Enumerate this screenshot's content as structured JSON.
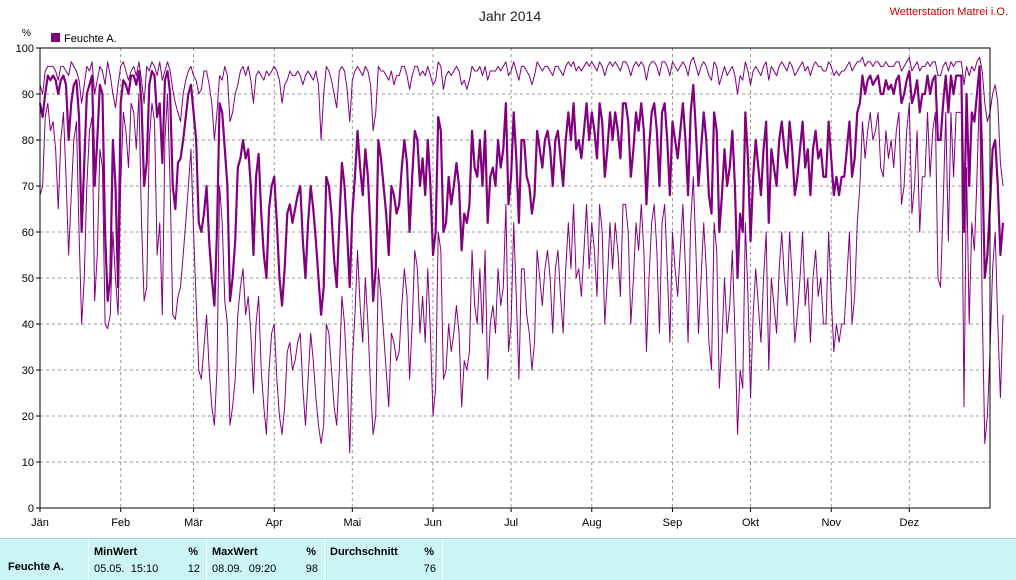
{
  "header": {
    "title": "Jahr 2014",
    "station": "Wetterstation Matrei i.O."
  },
  "colors": {
    "series": "#800080",
    "grid": "#999999",
    "stats_bg": "#ccf5f5"
  },
  "chart_data": {
    "type": "line",
    "unit_label": "%",
    "ylim": [
      0,
      100
    ],
    "y_ticks": [
      0,
      10,
      20,
      30,
      40,
      50,
      60,
      70,
      80,
      90,
      100
    ],
    "x_range": [
      0,
      365
    ],
    "x_ticks": [
      {
        "day": 0,
        "label": "Jän"
      },
      {
        "day": 31,
        "label": "Feb"
      },
      {
        "day": 59,
        "label": "Mär"
      },
      {
        "day": 90,
        "label": "Apr"
      },
      {
        "day": 120,
        "label": "Mai"
      },
      {
        "day": 151,
        "label": "Jun"
      },
      {
        "day": 181,
        "label": "Jul"
      },
      {
        "day": 212,
        "label": "Aug"
      },
      {
        "day": 243,
        "label": "Sep"
      },
      {
        "day": 273,
        "label": "Okt"
      },
      {
        "day": 304,
        "label": "Nov"
      },
      {
        "day": 334,
        "label": "Dez"
      }
    ],
    "grid": true,
    "legend_position": "top-left",
    "series_name": "Feuchte A.",
    "series": [
      {
        "key": "max",
        "values": [
          92,
          90,
          95,
          96,
          96,
          96,
          95,
          93,
          96,
          96,
          95,
          94,
          97,
          96,
          95,
          93,
          88,
          92,
          96,
          95,
          97,
          90,
          93,
          96,
          95,
          92,
          97,
          94,
          90,
          87,
          92,
          96,
          97,
          95,
          93,
          95,
          96,
          94,
          97,
          93,
          88,
          96,
          95,
          97,
          96,
          94,
          97,
          93,
          95,
          97,
          95,
          91,
          88,
          86,
          84,
          90,
          93,
          95,
          96,
          94,
          93,
          90,
          91,
          95,
          95,
          92,
          88,
          80,
          86,
          94,
          93,
          96,
          94,
          84,
          86,
          90,
          92,
          95,
          96,
          94,
          96,
          93,
          88,
          94,
          95,
          94,
          93,
          95,
          94,
          95,
          96,
          95,
          93,
          88,
          92,
          93,
          95,
          94,
          94,
          95,
          94,
          92,
          94,
          95,
          94,
          93,
          95,
          92,
          80,
          90,
          96,
          95,
          93,
          90,
          87,
          95,
          96,
          95,
          91,
          84,
          93,
          95,
          96,
          95,
          94,
          96,
          95,
          92,
          82,
          86,
          96,
          95,
          95,
          94,
          93,
          95,
          92,
          94,
          94,
          96,
          96,
          94,
          91,
          94,
          96,
          96,
          94,
          95,
          94,
          96,
          94,
          92,
          93,
          97,
          96,
          91,
          94,
          95,
          94,
          95,
          96,
          95,
          92,
          93,
          91,
          93,
          96,
          95,
          95,
          96,
          94,
          96,
          93,
          95,
          95,
          95,
          96,
          95,
          96,
          97,
          94,
          95,
          97,
          95,
          93,
          96,
          96,
          95,
          94,
          92,
          94,
          97,
          96,
          95,
          96,
          96,
          95,
          94,
          96,
          96,
          95,
          94,
          96,
          97,
          96,
          97,
          95,
          96,
          95,
          96,
          97,
          96,
          97,
          96,
          95,
          97,
          96,
          94,
          96,
          97,
          96,
          97,
          96,
          95,
          97,
          97,
          96,
          94,
          96,
          97,
          96,
          97,
          96,
          93,
          96,
          97,
          97,
          96,
          94,
          97,
          97,
          96,
          94,
          97,
          96,
          95,
          96,
          97,
          96,
          94,
          97,
          98,
          96,
          94,
          96,
          97,
          96,
          94,
          93,
          97,
          96,
          92,
          94,
          96,
          94,
          95,
          96,
          94,
          90,
          94,
          93,
          97,
          95,
          92,
          95,
          96,
          95,
          94,
          96,
          97,
          93,
          96,
          95,
          94,
          96,
          97,
          96,
          95,
          97,
          96,
          94,
          95,
          96,
          97,
          95,
          96,
          94,
          96,
          97,
          96,
          96,
          95,
          95,
          97,
          96,
          94,
          95,
          94,
          95,
          95,
          96,
          97,
          95,
          96,
          97,
          97,
          98,
          96,
          97,
          97,
          96,
          97,
          97,
          96,
          96,
          97,
          96,
          96,
          96,
          97,
          97,
          95,
          96,
          97,
          98,
          95,
          96,
          97,
          95,
          96,
          96,
          97,
          96,
          97,
          97,
          94,
          94,
          96,
          97,
          95,
          97,
          96,
          97,
          97,
          97,
          92,
          96,
          94,
          96,
          95,
          97,
          98,
          95,
          88,
          84,
          86,
          90,
          92,
          88,
          75,
          70
        ]
      },
      {
        "key": "mean",
        "values": [
          88,
          85,
          90,
          94,
          93,
          94,
          93,
          90,
          93,
          94,
          92,
          80,
          88,
          92,
          93,
          85,
          60,
          75,
          90,
          92,
          94,
          70,
          80,
          92,
          90,
          60,
          45,
          50,
          80,
          70,
          48,
          88,
          93,
          92,
          90,
          94,
          94,
          92,
          95,
          88,
          70,
          75,
          92,
          95,
          94,
          85,
          88,
          75,
          93,
          95,
          90,
          70,
          65,
          75,
          76,
          80,
          85,
          90,
          92,
          86,
          80,
          62,
          60,
          64,
          70,
          58,
          50,
          44,
          60,
          88,
          86,
          78,
          70,
          45,
          50,
          58,
          74,
          76,
          80,
          76,
          78,
          70,
          55,
          72,
          77,
          64,
          55,
          50,
          65,
          70,
          72,
          62,
          50,
          44,
          52,
          64,
          66,
          62,
          65,
          68,
          70,
          58,
          50,
          62,
          70,
          65,
          58,
          50,
          42,
          48,
          72,
          70,
          64,
          54,
          48,
          62,
          75,
          70,
          60,
          48,
          64,
          72,
          82,
          74,
          68,
          78,
          72,
          60,
          45,
          52,
          80,
          76,
          70,
          64,
          55,
          70,
          68,
          64,
          66,
          74,
          80,
          75,
          60,
          72,
          82,
          80,
          70,
          76,
          68,
          80,
          70,
          55,
          60,
          85,
          82,
          60,
          62,
          72,
          66,
          70,
          75,
          70,
          56,
          64,
          62,
          66,
          82,
          74,
          72,
          80,
          70,
          82,
          62,
          72,
          74,
          70,
          80,
          74,
          78,
          88,
          66,
          72,
          86,
          76,
          62,
          80,
          80,
          72,
          70,
          64,
          68,
          82,
          78,
          74,
          80,
          82,
          78,
          70,
          80,
          82,
          76,
          70,
          80,
          86,
          80,
          88,
          78,
          80,
          76,
          82,
          88,
          80,
          86,
          82,
          76,
          88,
          84,
          72,
          78,
          86,
          80,
          86,
          82,
          76,
          88,
          88,
          84,
          72,
          78,
          86,
          82,
          88,
          82,
          66,
          78,
          86,
          88,
          82,
          70,
          86,
          88,
          80,
          68,
          84,
          80,
          76,
          82,
          88,
          80,
          68,
          86,
          92,
          82,
          70,
          78,
          86,
          80,
          68,
          64,
          86,
          82,
          60,
          68,
          78,
          70,
          74,
          82,
          70,
          50,
          64,
          60,
          86,
          76,
          58,
          72,
          80,
          74,
          68,
          78,
          84,
          62,
          78,
          74,
          70,
          80,
          84,
          78,
          74,
          84,
          78,
          68,
          72,
          78,
          84,
          74,
          78,
          68,
          78,
          82,
          76,
          78,
          72,
          72,
          84,
          76,
          68,
          72,
          68,
          72,
          72,
          78,
          84,
          72,
          76,
          86,
          88,
          94,
          90,
          93,
          94,
          92,
          93,
          94,
          90,
          90,
          93,
          91,
          92,
          90,
          93,
          94,
          88,
          90,
          93,
          95,
          88,
          90,
          93,
          86,
          90,
          90,
          94,
          90,
          93,
          94,
          80,
          80,
          88,
          94,
          86,
          94,
          90,
          94,
          94,
          94,
          60,
          90,
          70,
          86,
          84,
          90,
          96,
          76,
          50,
          55,
          66,
          78,
          80,
          70,
          55,
          62
        ]
      },
      {
        "key": "min",
        "values": [
          68,
          70,
          85,
          88,
          82,
          84,
          78,
          65,
          80,
          86,
          72,
          55,
          68,
          80,
          84,
          60,
          40,
          50,
          70,
          82,
          85,
          45,
          55,
          78,
          74,
          40,
          39,
          42,
          60,
          50,
          42,
          70,
          86,
          82,
          74,
          88,
          86,
          78,
          90,
          62,
          45,
          48,
          80,
          88,
          84,
          55,
          62,
          42,
          80,
          90,
          70,
          42,
          41,
          46,
          48,
          55,
          62,
          70,
          78,
          60,
          45,
          30,
          28,
          35,
          42,
          30,
          22,
          18,
          30,
          70,
          62,
          45,
          40,
          18,
          22,
          28,
          42,
          48,
          52,
          42,
          46,
          38,
          25,
          40,
          46,
          30,
          22,
          16,
          30,
          38,
          40,
          28,
          20,
          16,
          22,
          34,
          36,
          30,
          32,
          36,
          38,
          26,
          18,
          28,
          38,
          32,
          24,
          18,
          14,
          18,
          40,
          38,
          30,
          22,
          18,
          30,
          46,
          40,
          28,
          12,
          32,
          42,
          56,
          44,
          36,
          50,
          40,
          26,
          16,
          20,
          52,
          46,
          38,
          30,
          22,
          38,
          36,
          32,
          34,
          44,
          52,
          46,
          28,
          40,
          56,
          52,
          38,
          46,
          36,
          52,
          38,
          20,
          26,
          60,
          56,
          28,
          30,
          40,
          34,
          38,
          44,
          38,
          22,
          32,
          30,
          34,
          56,
          44,
          40,
          52,
          38,
          56,
          28,
          40,
          44,
          38,
          52,
          44,
          48,
          66,
          34,
          40,
          62,
          46,
          28,
          52,
          52,
          42,
          38,
          30,
          36,
          56,
          50,
          44,
          52,
          56,
          50,
          38,
          52,
          56,
          46,
          38,
          52,
          62,
          52,
          66,
          50,
          52,
          46,
          56,
          66,
          52,
          62,
          56,
          46,
          66,
          60,
          40,
          50,
          62,
          52,
          62,
          56,
          46,
          66,
          66,
          60,
          40,
          50,
          62,
          56,
          66,
          56,
          34,
          50,
          62,
          66,
          56,
          38,
          62,
          66,
          52,
          36,
          60,
          52,
          46,
          56,
          66,
          52,
          36,
          62,
          72,
          56,
          38,
          50,
          62,
          52,
          36,
          30,
          62,
          56,
          26,
          36,
          50,
          38,
          44,
          56,
          38,
          16,
          30,
          26,
          62,
          46,
          24,
          42,
          52,
          44,
          36,
          50,
          60,
          30,
          50,
          44,
          38,
          52,
          60,
          50,
          44,
          60,
          50,
          36,
          42,
          50,
          60,
          44,
          50,
          36,
          50,
          56,
          46,
          50,
          40,
          40,
          60,
          46,
          34,
          40,
          36,
          40,
          40,
          50,
          60,
          40,
          46,
          62,
          70,
          84,
          76,
          82,
          86,
          80,
          82,
          86,
          74,
          72,
          82,
          76,
          80,
          74,
          82,
          86,
          66,
          70,
          82,
          88,
          64,
          70,
          82,
          60,
          72,
          72,
          86,
          72,
          82,
          86,
          50,
          48,
          66,
          86,
          58,
          86,
          72,
          86,
          86,
          86,
          22,
          74,
          40,
          62,
          56,
          72,
          92,
          44,
          14,
          20,
          34,
          52,
          60,
          40,
          24,
          42
        ]
      }
    ]
  },
  "stats": {
    "series_label": "Feuchte A.",
    "min": {
      "label": "MinWert",
      "unit": "%",
      "datetime": "05.05.  15:10",
      "value": "12"
    },
    "max": {
      "label": "MaxWert",
      "unit": "%",
      "datetime": "08.09.  09:20",
      "value": "98"
    },
    "avg": {
      "label": "Durchschnitt",
      "unit": "%",
      "value": "76"
    }
  }
}
